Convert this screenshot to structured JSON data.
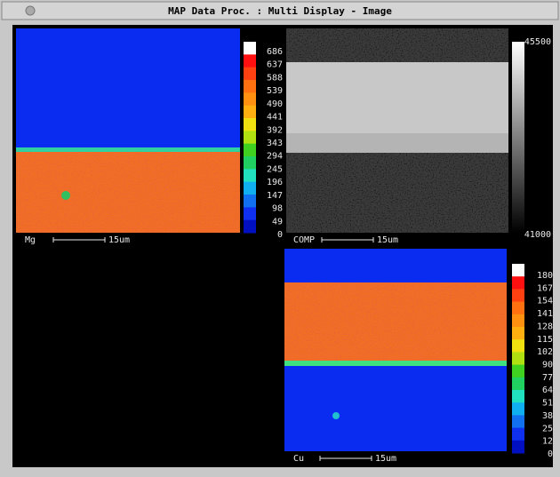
{
  "window": {
    "title": "MAP Data Proc. : Multi Display - Image"
  },
  "panels": [
    {
      "label": "Mg",
      "scale_bar": "15um",
      "color_scale": [
        "686",
        "637",
        "588",
        "539",
        "490",
        "441",
        "392",
        "343",
        "294",
        "245",
        "196",
        "147",
        "98",
        "49",
        "0"
      ]
    },
    {
      "label": "COMP",
      "scale_bar": "15um",
      "color_scale": [
        "45500",
        "41000"
      ]
    },
    {
      "label": "Cu",
      "scale_bar": "15um",
      "color_scale": [
        "180",
        "167",
        "154",
        "141",
        "128",
        "115",
        "102",
        "90",
        "77",
        "64",
        "51",
        "38",
        "25",
        "12",
        "0"
      ]
    }
  ]
}
